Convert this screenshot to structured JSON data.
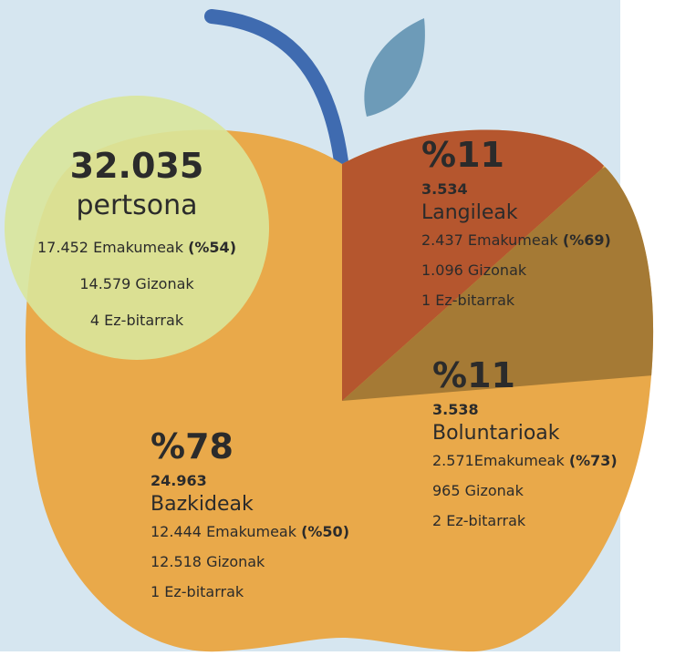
{
  "total": {
    "number": "32.035",
    "unit": "pertsona",
    "women": "17.452 Emakumeak",
    "women_pct": "(%54)",
    "men": "14.579 Gizonak",
    "nonbinary": "4 Ez-bitarrak"
  },
  "groups": [
    {
      "percent": "%11",
      "count": "3.534",
      "name": "Langileak",
      "women": "2.437 Emakumeak",
      "women_pct": "(%69)",
      "men": "1.096 Gizonak",
      "nonbinary": "1 Ez-bitarrak"
    },
    {
      "percent": "%11",
      "count": "3.538",
      "name": "Boluntarioak",
      "women": "2.571Emakumeak",
      "women_pct": "(%73)",
      "men": "965 Gizonak",
      "nonbinary": "2 Ez-bitarrak"
    },
    {
      "percent": "%78",
      "count": "24.963",
      "name": "Bazkideak",
      "women": "12.444 Emakumeak",
      "women_pct": "(%50)",
      "men": "12.518 Gizonak",
      "nonbinary": "1 Ez-bitarrak"
    }
  ]
}
